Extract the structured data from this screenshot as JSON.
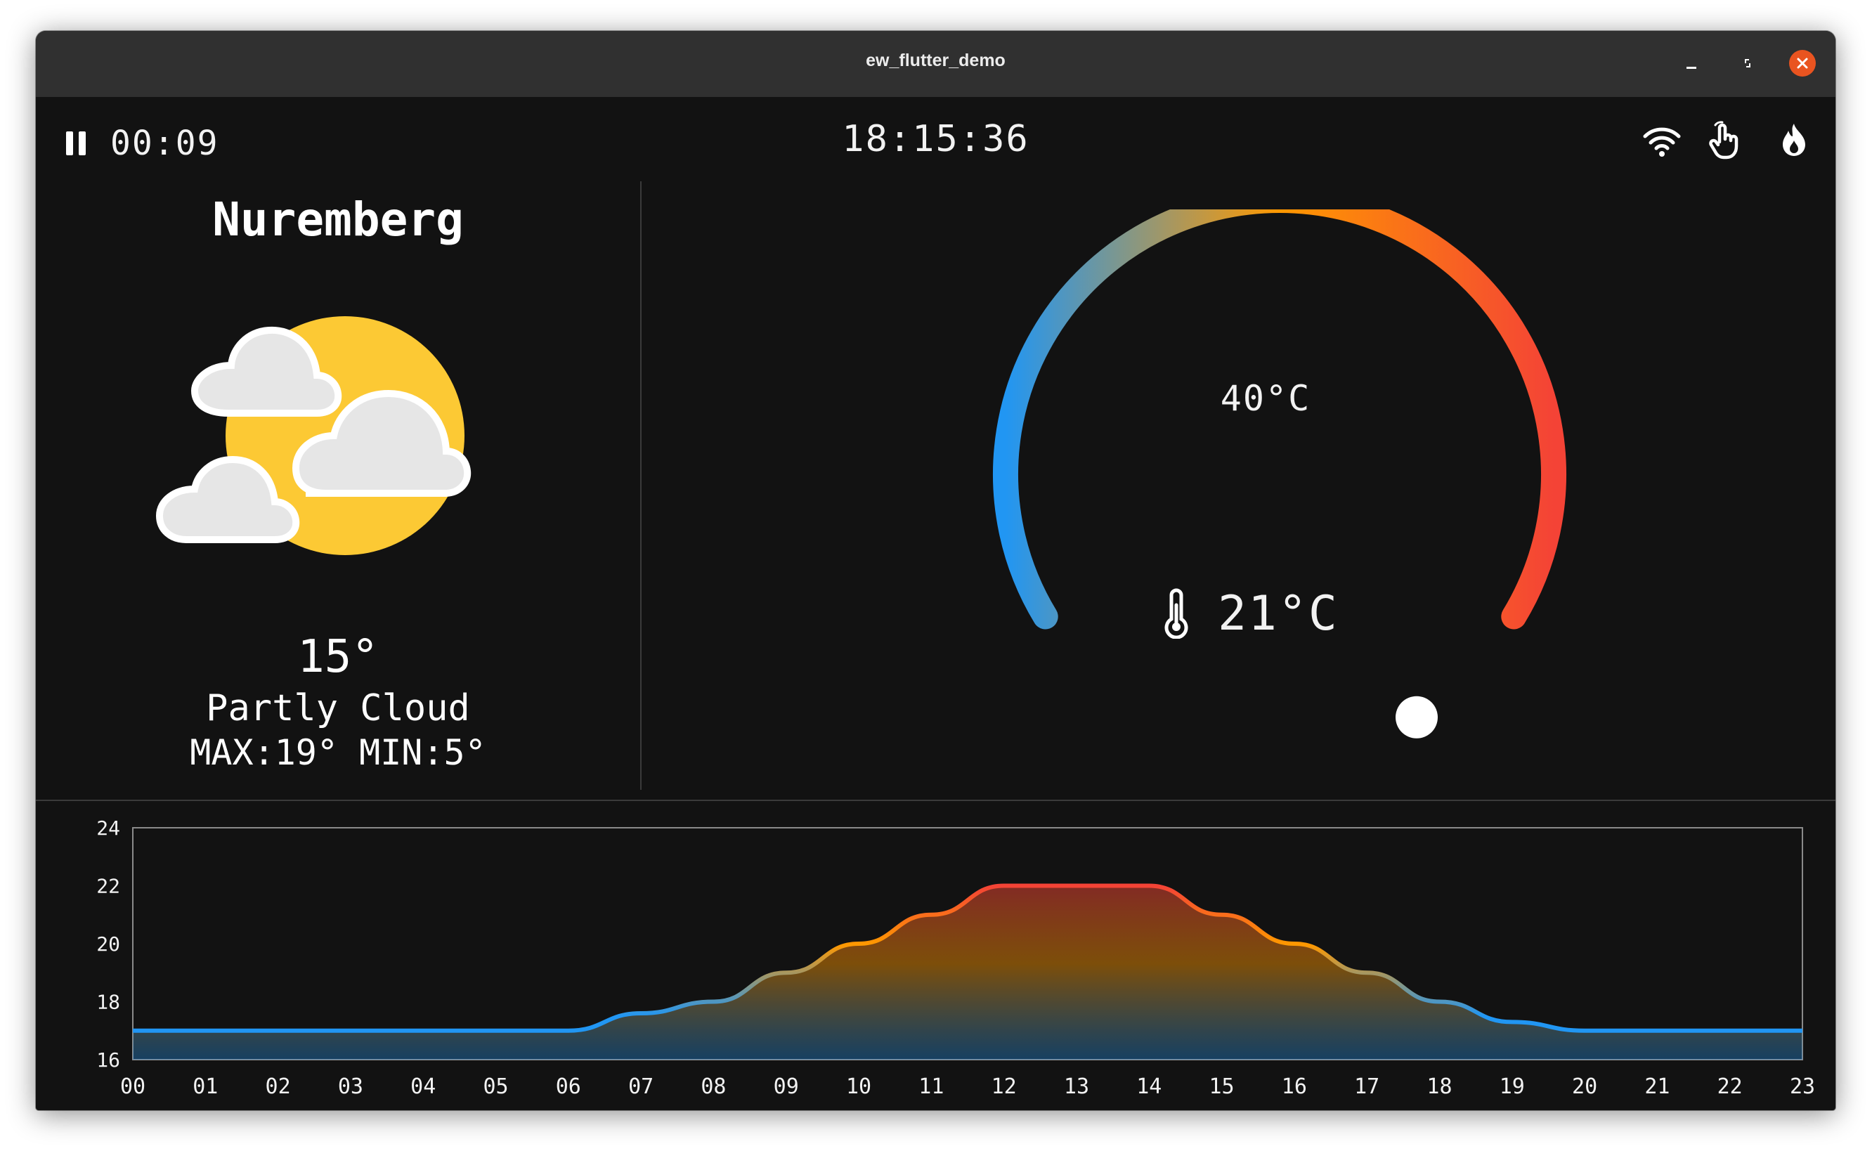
{
  "window": {
    "title": "ew_flutter_demo"
  },
  "topbar": {
    "elapsed": "00:09",
    "clock": "18:15:36"
  },
  "weather": {
    "city": "Nuremberg",
    "temperature": "15°",
    "condition": "Partly Cloud",
    "max_min": "MAX:19° MIN:5°",
    "icon": "partly-cloudy-icon"
  },
  "thermostat": {
    "target_label": "40°C",
    "current_label": "21°C",
    "gauge_min": 0,
    "gauge_max": 40,
    "target_value": 40,
    "colors": {
      "cold": "#2196f3",
      "mid": "#ff9800",
      "hot": "#f44336"
    }
  },
  "chart_data": {
    "type": "area",
    "title": "",
    "xlabel": "",
    "ylabel": "",
    "x": [
      "00",
      "01",
      "02",
      "03",
      "04",
      "05",
      "06",
      "07",
      "08",
      "09",
      "10",
      "11",
      "12",
      "13",
      "14",
      "15",
      "16",
      "17",
      "18",
      "19",
      "20",
      "21",
      "22",
      "23"
    ],
    "y_ticks": [
      "24",
      "22",
      "20",
      "18",
      "16"
    ],
    "ylim": [
      16,
      24
    ],
    "series": [
      {
        "values": [
          17,
          17,
          17,
          17,
          17,
          17,
          17,
          17.6,
          18,
          19,
          20,
          21,
          22,
          22,
          22,
          21,
          20,
          19,
          18,
          17.3,
          17,
          17,
          17,
          17
        ]
      }
    ],
    "grid": false
  }
}
